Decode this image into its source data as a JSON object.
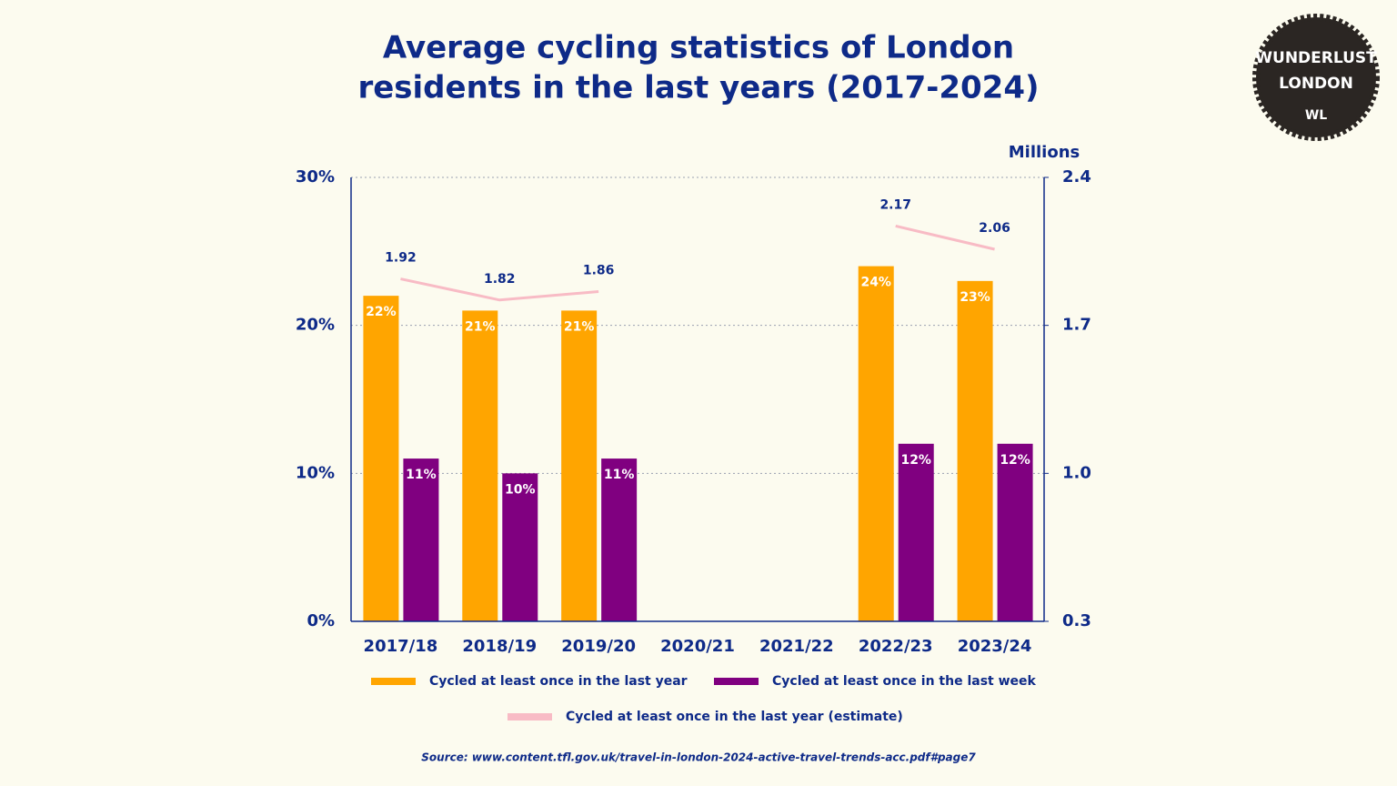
{
  "chart_data": {
    "type": "bar",
    "title": [
      "Average cycling statistics of London",
      "residents in the last years (2017-2024)"
    ],
    "y2_label": "Millions",
    "categories": [
      "2017/18",
      "2018/19",
      "2019/20",
      "2020/21",
      "2021/22",
      "2022/23",
      "2023/24"
    ],
    "series": [
      {
        "name": "Cycled at least once in the last year",
        "type": "bar",
        "color": "#FFA500",
        "values": [
          22,
          21,
          21,
          null,
          null,
          24,
          23
        ],
        "value_labels": [
          "22%",
          "21%",
          "21%",
          null,
          null,
          "24%",
          "23%"
        ]
      },
      {
        "name": "Cycled at least once in the last week",
        "type": "bar",
        "color": "#800080",
        "values": [
          11,
          10,
          11,
          null,
          null,
          12,
          12
        ],
        "value_labels": [
          "11%",
          "10%",
          "11%",
          null,
          null,
          "12%",
          "12%"
        ]
      },
      {
        "name": "Cycled at least once in the last year (estimate)",
        "type": "line",
        "axis": "y2",
        "color": "#F8BBC5",
        "values": [
          1.92,
          1.82,
          1.86,
          null,
          null,
          2.17,
          2.06
        ]
      }
    ],
    "ylim": [
      0,
      30
    ],
    "yticks": [
      {
        "value": 0,
        "label": "0%"
      },
      {
        "value": 10,
        "label": "10%"
      },
      {
        "value": 20,
        "label": "20%"
      },
      {
        "value": 30,
        "label": "30%"
      }
    ],
    "y2lim": [
      0.3,
      2.4
    ],
    "y2ticks": [
      0.3,
      {
        "value": 1,
        "label": "1.0"
      },
      1.7,
      2.4
    ],
    "grid": true,
    "source": "Source: www.content.tfl.gov.uk/travel-in-london-2024-active-travel-trends-acc.pdf#page7"
  },
  "logo": {
    "lines": [
      "WUNDERLUST",
      "LONDON",
      "WL"
    ]
  }
}
